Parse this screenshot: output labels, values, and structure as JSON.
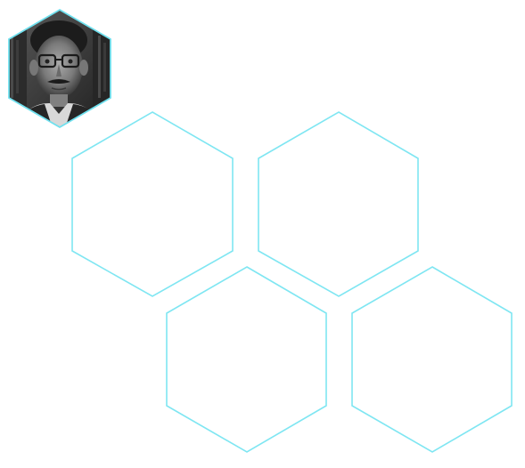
{
  "colors": {
    "hex_stroke": "#7fe6f2",
    "avatar_border": "#6fe0ee",
    "background": "#ffffff"
  },
  "avatar": {
    "icon": "person-photo-icon",
    "style": "grayscale-portrait"
  },
  "hexagons": [
    {
      "name": "hexagon-tile-1"
    },
    {
      "name": "hexagon-tile-2"
    },
    {
      "name": "hexagon-tile-3"
    },
    {
      "name": "hexagon-tile-4"
    }
  ]
}
